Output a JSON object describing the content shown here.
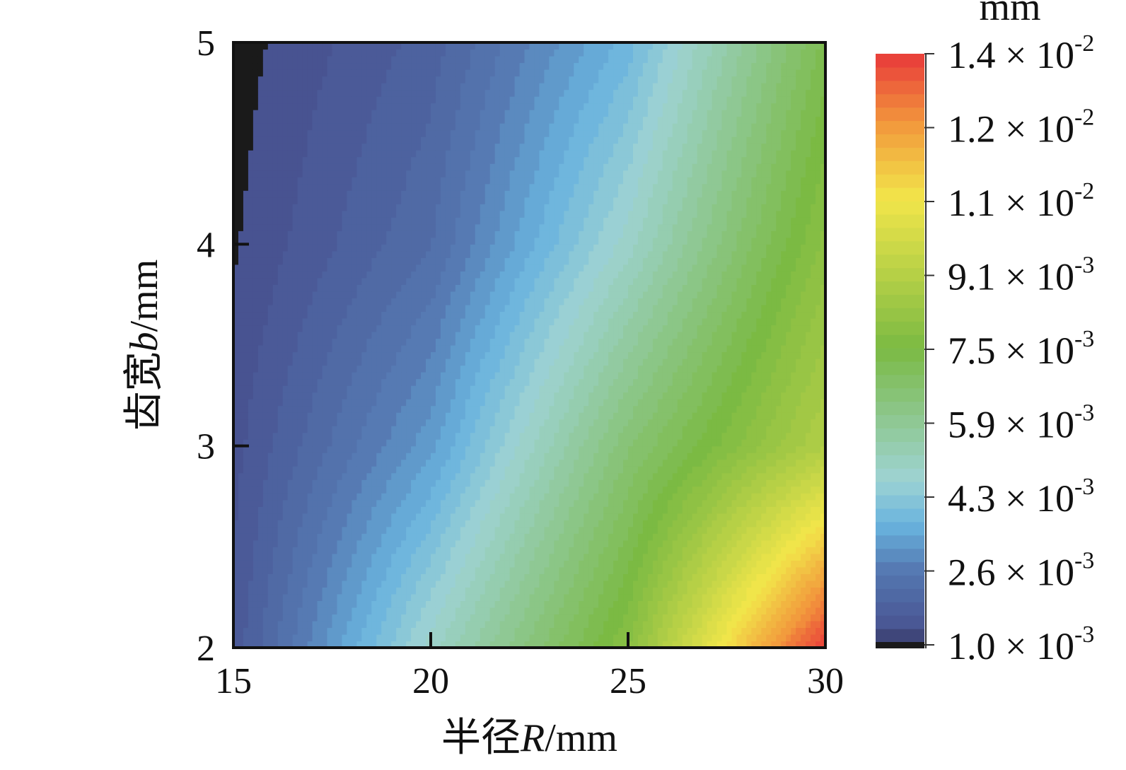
{
  "chart_data": {
    "type": "heatmap",
    "subtype": "filled-contour",
    "xlabel": {
      "prefix": "半径",
      "var": "R",
      "unit": "/mm"
    },
    "ylabel": {
      "prefix": "齿宽",
      "var": "b",
      "unit": "/mm"
    },
    "xlim": [
      15,
      30
    ],
    "ylim": [
      2,
      5
    ],
    "xticks": [
      15,
      20,
      25,
      30
    ],
    "yticks": [
      2,
      3,
      4,
      5
    ],
    "colorbar": {
      "unit_label": "mm",
      "range": [
        0.001,
        0.014
      ],
      "ticks": [
        {
          "value": 0.014,
          "mantissa": "1.4",
          "exponent": "-2"
        },
        {
          "value": 0.012,
          "mantissa": "1.2",
          "exponent": "-2"
        },
        {
          "value": 0.011,
          "mantissa": "1.1",
          "exponent": "-2"
        },
        {
          "value": 0.0091,
          "mantissa": "9.1",
          "exponent": "-3"
        },
        {
          "value": 0.0075,
          "mantissa": "7.5",
          "exponent": "-3"
        },
        {
          "value": 0.0059,
          "mantissa": "5.9",
          "exponent": "-3"
        },
        {
          "value": 0.0043,
          "mantissa": "4.3",
          "exponent": "-3"
        },
        {
          "value": 0.0026,
          "mantissa": "2.6",
          "exponent": "-3"
        },
        {
          "value": 0.001,
          "mantissa": "1.0",
          "exponent": "-3"
        }
      ],
      "colors": [
        "#1a1a1a",
        "#47508f",
        "#5579b2",
        "#69b3de",
        "#9ed3d3",
        "#7bba43",
        "#f2e64a",
        "#f2963c",
        "#e8393a"
      ]
    },
    "grid": false,
    "approx_values": {
      "x": [
        15,
        20,
        25,
        30
      ],
      "y": [
        2,
        3,
        4,
        5
      ],
      "z": [
        [
          0.0015,
          0.0048,
          0.0079,
          0.014
        ],
        [
          0.0013,
          0.0032,
          0.0065,
          0.009
        ],
        [
          0.0011,
          0.0022,
          0.0048,
          0.008
        ],
        [
          0.001,
          0.0018,
          0.0037,
          0.0072
        ]
      ]
    }
  }
}
